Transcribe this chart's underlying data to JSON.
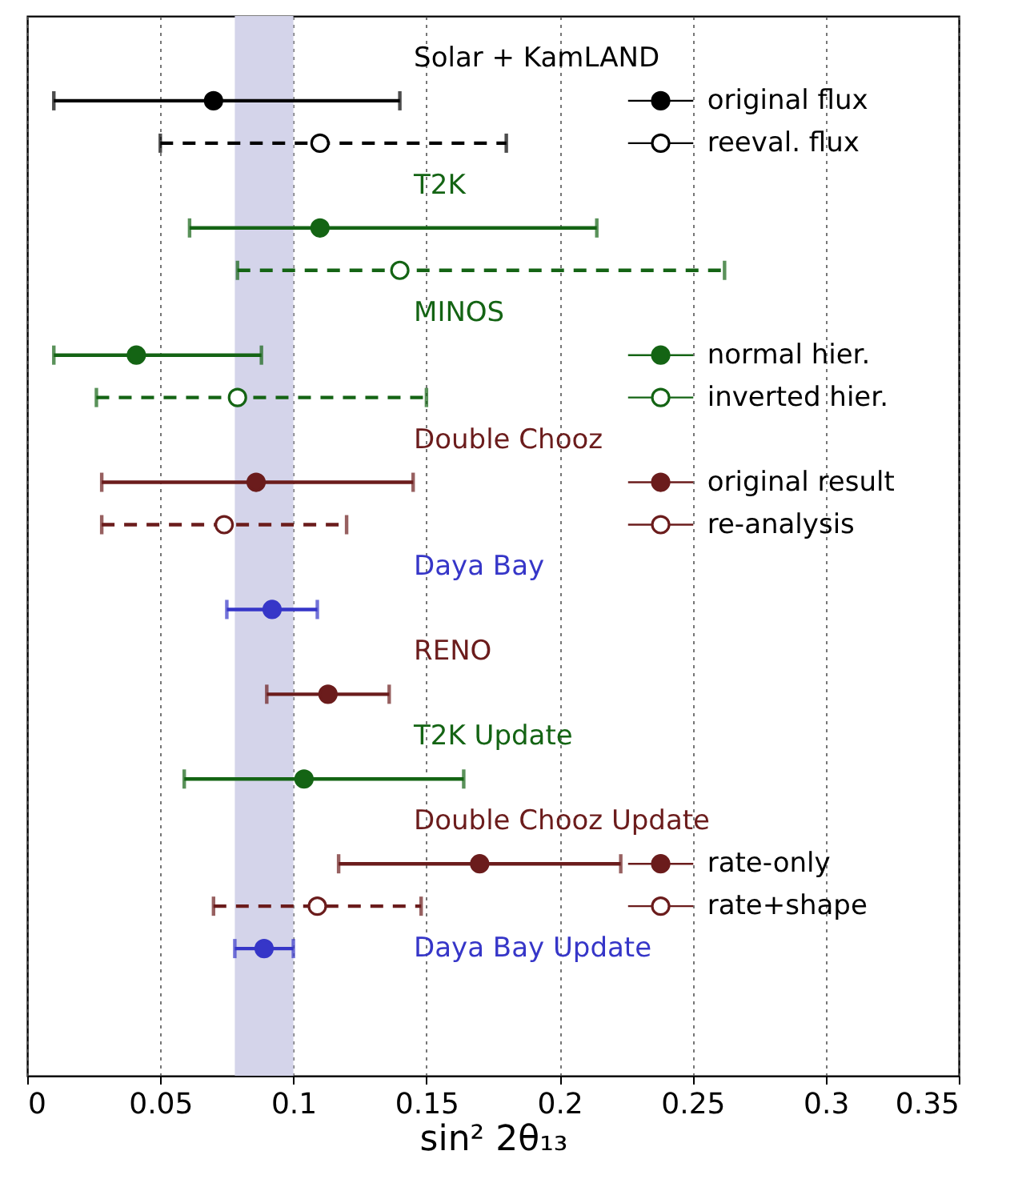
{
  "chart_data": {
    "type": "scatter",
    "orientation": "horizontal",
    "xlabel": "sin² 2θ₁₃",
    "categories": [
      "Solar + KamLAND",
      null,
      null,
      "T2K",
      null,
      null,
      "MINOS",
      null,
      null,
      "Double Chooz",
      null,
      null,
      "Daya Bay",
      null,
      "RENO",
      null,
      "T2K Update",
      null,
      "Double Chooz Update",
      null,
      null,
      "Daya Bay Update",
      null,
      null
    ],
    "xlim": [
      0,
      0.35
    ],
    "xticks": [
      0,
      0.05,
      0.1,
      0.15,
      0.2,
      0.25,
      0.3,
      0.35
    ],
    "grid": "x",
    "marker": "circle",
    "legend": "right",
    "bands": [
      {
        "axis": "x",
        "from": 0.078,
        "to": 0.1,
        "color": "#d4d4ea"
      }
    ],
    "series": [
      {
        "name": "original flux",
        "color": "#000000",
        "values": [
          null,
          0.07,
          null,
          null,
          null,
          null,
          null,
          null,
          null,
          null,
          null,
          null,
          null,
          null,
          null,
          null,
          null,
          null,
          null,
          null,
          null,
          null,
          null,
          null
        ],
        "errors": [
          null,
          [
            0.01,
            0.14
          ],
          null,
          null,
          null,
          null,
          null,
          null,
          null,
          null,
          null,
          null,
          null,
          null,
          null,
          null,
          null,
          null,
          null,
          null,
          null,
          null,
          null,
          null
        ]
      },
      {
        "name": "reeval. flux",
        "color": "#000000",
        "line_style": "dashed",
        "values": [
          null,
          null,
          0.11,
          null,
          null,
          null,
          null,
          null,
          null,
          null,
          null,
          null,
          null,
          null,
          null,
          null,
          null,
          null,
          null,
          null,
          null,
          null,
          null,
          null
        ],
        "errors": [
          null,
          null,
          [
            0.05,
            0.18
          ],
          null,
          null,
          null,
          null,
          null,
          null,
          null,
          null,
          null,
          null,
          null,
          null,
          null,
          null,
          null,
          null,
          null,
          null,
          null,
          null,
          null
        ]
      },
      {
        "name": "normal hier.",
        "color": "#146414",
        "values": [
          null,
          null,
          null,
          null,
          0.11,
          null,
          null,
          0.041,
          null,
          null,
          null,
          null,
          null,
          null,
          null,
          null,
          null,
          null,
          null,
          null,
          null,
          null,
          null,
          null
        ],
        "errors": [
          null,
          null,
          null,
          null,
          [
            0.061,
            0.214
          ],
          null,
          null,
          [
            0.01,
            0.088
          ],
          null,
          null,
          null,
          null,
          null,
          null,
          null,
          null,
          null,
          null,
          null,
          null,
          null,
          null,
          null,
          null
        ]
      },
      {
        "name": "inverted hier.",
        "color": "#146414",
        "line_style": "dashed",
        "values": [
          null,
          null,
          null,
          null,
          null,
          0.14,
          null,
          null,
          0.079,
          null,
          null,
          null,
          null,
          null,
          null,
          null,
          null,
          null,
          null,
          null,
          null,
          null,
          null,
          null
        ],
        "errors": [
          null,
          null,
          null,
          null,
          null,
          [
            0.079,
            0.262
          ],
          null,
          null,
          [
            0.026,
            0.15
          ],
          null,
          null,
          null,
          null,
          null,
          null,
          null,
          null,
          null,
          null,
          null,
          null,
          null,
          null,
          null
        ]
      },
      {
        "name": "original result",
        "color": "#6b1c1c",
        "values": [
          null,
          null,
          null,
          null,
          null,
          null,
          null,
          null,
          null,
          null,
          0.086,
          null,
          null,
          null,
          null,
          null,
          null,
          null,
          null,
          null,
          null,
          null,
          null,
          null
        ],
        "errors": [
          null,
          null,
          null,
          null,
          null,
          null,
          null,
          null,
          null,
          null,
          [
            0.028,
            0.145
          ],
          null,
          null,
          null,
          null,
          null,
          null,
          null,
          null,
          null,
          null,
          null,
          null,
          null
        ]
      },
      {
        "name": "re-analysis",
        "color": "#6b1c1c",
        "line_style": "dashed",
        "values": [
          null,
          null,
          null,
          null,
          null,
          null,
          null,
          null,
          null,
          null,
          null,
          0.074,
          null,
          null,
          null,
          null,
          null,
          null,
          null,
          null,
          null,
          null,
          null,
          null
        ],
        "errors": [
          null,
          null,
          null,
          null,
          null,
          null,
          null,
          null,
          null,
          null,
          null,
          [
            0.028,
            0.12
          ],
          null,
          null,
          null,
          null,
          null,
          null,
          null,
          null,
          null,
          null,
          null,
          null
        ]
      },
      {
        "color": "#3636c8",
        "values": [
          null,
          null,
          null,
          null,
          null,
          null,
          null,
          null,
          null,
          null,
          null,
          null,
          null,
          0.092,
          null,
          null,
          null,
          null,
          null,
          null,
          null,
          0.089,
          null,
          null
        ],
        "errors": [
          null,
          null,
          null,
          null,
          null,
          null,
          null,
          null,
          null,
          null,
          null,
          null,
          null,
          [
            0.075,
            0.109
          ],
          null,
          null,
          null,
          null,
          null,
          null,
          null,
          [
            0.078,
            0.1
          ],
          null,
          null
        ]
      },
      {
        "color": "#6b1c1c",
        "values": [
          null,
          null,
          null,
          null,
          null,
          null,
          null,
          null,
          null,
          null,
          null,
          null,
          null,
          null,
          null,
          0.113,
          null,
          null,
          null,
          null,
          null,
          null,
          null,
          null
        ],
        "errors": [
          null,
          null,
          null,
          null,
          null,
          null,
          null,
          null,
          null,
          null,
          null,
          null,
          null,
          null,
          null,
          [
            0.09,
            0.136
          ],
          null,
          null,
          null,
          null,
          null,
          null,
          null,
          null
        ]
      },
      {
        "color": "#146414",
        "values": [
          null,
          null,
          null,
          null,
          null,
          null,
          null,
          null,
          null,
          null,
          null,
          null,
          null,
          null,
          null,
          null,
          null,
          0.104,
          null,
          null,
          null,
          null,
          null,
          null
        ],
        "errors": [
          null,
          null,
          null,
          null,
          null,
          null,
          null,
          null,
          null,
          null,
          null,
          null,
          null,
          null,
          null,
          null,
          null,
          [
            0.059,
            0.164
          ],
          null,
          null,
          null,
          null,
          null,
          null
        ]
      },
      {
        "name": "rate-only",
        "color": "#6b1c1c",
        "values": [
          null,
          null,
          null,
          null,
          null,
          null,
          null,
          null,
          null,
          null,
          null,
          null,
          null,
          null,
          null,
          null,
          null,
          null,
          null,
          0.17,
          null,
          null,
          null,
          null
        ],
        "errors": [
          null,
          null,
          null,
          null,
          null,
          null,
          null,
          null,
          null,
          null,
          null,
          null,
          null,
          null,
          null,
          null,
          null,
          null,
          null,
          [
            0.117,
            0.223
          ],
          null,
          null,
          null,
          null
        ]
      },
      {
        "name": "rate+shape",
        "color": "#6b1c1c",
        "line_style": "dashed",
        "values": [
          null,
          null,
          null,
          null,
          null,
          null,
          null,
          null,
          null,
          null,
          null,
          null,
          null,
          null,
          null,
          null,
          null,
          null,
          null,
          null,
          0.109,
          null,
          null,
          null
        ],
        "errors": [
          null,
          null,
          null,
          null,
          null,
          null,
          null,
          null,
          null,
          null,
          null,
          null,
          null,
          null,
          null,
          null,
          null,
          null,
          null,
          null,
          [
            0.07,
            0.148
          ],
          null,
          null,
          null
        ]
      }
    ]
  }
}
